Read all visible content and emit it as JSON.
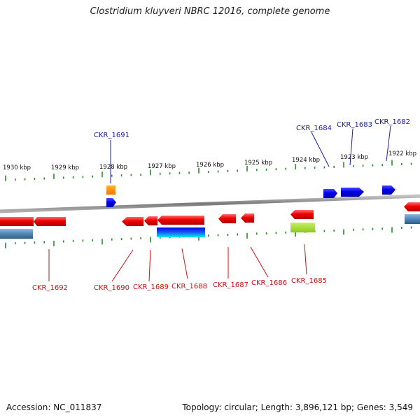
{
  "title": "Clostridium kluyveri NBRC 12016, complete genome",
  "footer": {
    "accession": "Accession: NC_011837",
    "summary": "Topology: circular; Length: 3,896,121 bp; Genes: 3,549"
  },
  "colors": {
    "forward_gene": "#0000ee",
    "reverse_gene": "#ee0000",
    "forward_label": "#1a1aa8",
    "reverse_label": "#cc1111",
    "tick": "#2a8a2a",
    "backbone": "#8a8a8a",
    "orange_feature": "#ff8c00",
    "lime_feature": "#a8e030",
    "cyan_feature": "#00e0e8",
    "steel_feature": "#4f86b8"
  },
  "ruler": {
    "unit": "kbp",
    "ticks": [
      {
        "kbp": 1930,
        "label": "1930 kbp"
      },
      {
        "kbp": 1929,
        "label": "1929 kbp"
      },
      {
        "kbp": 1928,
        "label": "1928 kbp"
      },
      {
        "kbp": 1927,
        "label": "1927 kbp"
      },
      {
        "kbp": 1926,
        "label": "1926 kbp"
      },
      {
        "kbp": 1925,
        "label": "1925 kbp"
      },
      {
        "kbp": 1924,
        "label": "1924 kbp"
      },
      {
        "kbp": 1923,
        "label": "1923 kbp"
      },
      {
        "kbp": 1922,
        "label": "1922 kbp"
      }
    ]
  },
  "genes": {
    "forward": [
      {
        "locus": "CKR_1691"
      },
      {
        "locus": "CKR_1684"
      },
      {
        "locus": "CKR_1683"
      },
      {
        "locus": "CKR_1682"
      }
    ],
    "reverse": [
      {
        "locus": "CKR_1692"
      },
      {
        "locus": "CKR_1690"
      },
      {
        "locus": "CKR_1689"
      },
      {
        "locus": "CKR_1688"
      },
      {
        "locus": "CKR_1687"
      },
      {
        "locus": "CKR_1686"
      },
      {
        "locus": "CKR_1685"
      }
    ]
  }
}
